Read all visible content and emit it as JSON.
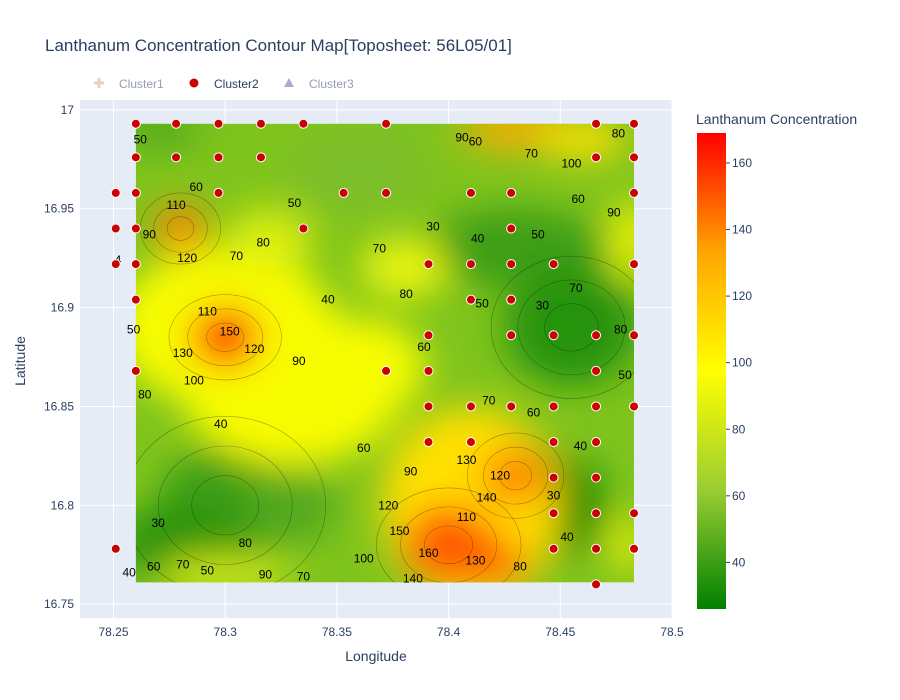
{
  "chart_data": {
    "type": "contour",
    "title": "Lanthanum Concentration Contour Map[Toposheet: 56L05/01]",
    "xlabel": "Longitude",
    "ylabel": "Latitude",
    "xlim": [
      78.235,
      78.5
    ],
    "ylim": [
      16.743,
      17.005
    ],
    "xticks": [
      78.25,
      78.3,
      78.35,
      78.4,
      78.45,
      78.5
    ],
    "xtick_labels": [
      "78.25",
      "78.3",
      "78.35",
      "78.4",
      "78.45",
      "78.5"
    ],
    "yticks": [
      16.75,
      16.8,
      16.85,
      16.9,
      16.95,
      17.0
    ],
    "ytick_labels": [
      "16.75",
      "16.8",
      "16.85",
      "16.9",
      "16.95",
      "17"
    ],
    "grid": true,
    "contour_region": {
      "x": [
        78.26,
        78.483
      ],
      "y": [
        16.761,
        16.993
      ]
    },
    "colorbar": {
      "title": "Lanthanum Concentration",
      "range": [
        26,
        169
      ],
      "ticks": [
        40,
        60,
        80,
        100,
        120,
        140,
        160
      ],
      "colors": [
        "#008000",
        "#9acd32",
        "#ffff00",
        "#ffa500",
        "#ff0000"
      ]
    },
    "legend": {
      "position": "top",
      "items": [
        {
          "name": "Cluster1",
          "symbol": "cross",
          "color": "#d2a679",
          "visible": false
        },
        {
          "name": "Cluster2",
          "symbol": "circle",
          "color": "#cc0000",
          "visible": true
        },
        {
          "name": "Cluster3",
          "symbol": "triangle",
          "color": "#5a5aa0",
          "visible": false
        }
      ]
    },
    "contour_labels": [
      {
        "text": "50",
        "x": 78.262,
        "y": 16.985
      },
      {
        "text": "60",
        "x": 78.287,
        "y": 16.961
      },
      {
        "text": "110",
        "x": 78.278,
        "y": 16.952
      },
      {
        "text": "90",
        "x": 78.266,
        "y": 16.937
      },
      {
        "text": "120",
        "x": 78.283,
        "y": 16.925
      },
      {
        "text": "70",
        "x": 78.305,
        "y": 16.926
      },
      {
        "text": "80",
        "x": 78.317,
        "y": 16.933
      },
      {
        "text": "50",
        "x": 78.331,
        "y": 16.953
      },
      {
        "text": "4",
        "x": 78.252,
        "y": 16.924
      },
      {
        "text": "50",
        "x": 78.259,
        "y": 16.889
      },
      {
        "text": "110",
        "x": 78.292,
        "y": 16.898
      },
      {
        "text": "150",
        "x": 78.302,
        "y": 16.888
      },
      {
        "text": "130",
        "x": 78.281,
        "y": 16.877
      },
      {
        "text": "120",
        "x": 78.313,
        "y": 16.879
      },
      {
        "text": "100",
        "x": 78.286,
        "y": 16.863
      },
      {
        "text": "80",
        "x": 78.264,
        "y": 16.856
      },
      {
        "text": "40",
        "x": 78.298,
        "y": 16.841
      },
      {
        "text": "90",
        "x": 78.333,
        "y": 16.873
      },
      {
        "text": "40",
        "x": 78.346,
        "y": 16.904
      },
      {
        "text": "70",
        "x": 78.369,
        "y": 16.93
      },
      {
        "text": "80",
        "x": 78.381,
        "y": 16.907
      },
      {
        "text": "30",
        "x": 78.393,
        "y": 16.941
      },
      {
        "text": "40",
        "x": 78.413,
        "y": 16.935
      },
      {
        "text": "50",
        "x": 78.415,
        "y": 16.902
      },
      {
        "text": "60",
        "x": 78.389,
        "y": 16.88
      },
      {
        "text": "60",
        "x": 78.362,
        "y": 16.829
      },
      {
        "text": "90",
        "x": 78.406,
        "y": 16.986
      },
      {
        "text": "60",
        "x": 78.412,
        "y": 16.984
      },
      {
        "text": "70",
        "x": 78.437,
        "y": 16.978
      },
      {
        "text": "100",
        "x": 78.455,
        "y": 16.973
      },
      {
        "text": "80",
        "x": 78.476,
        "y": 16.988
      },
      {
        "text": "60",
        "x": 78.458,
        "y": 16.955
      },
      {
        "text": "50",
        "x": 78.44,
        "y": 16.937
      },
      {
        "text": "90",
        "x": 78.474,
        "y": 16.948
      },
      {
        "text": "70",
        "x": 78.457,
        "y": 16.91
      },
      {
        "text": "30",
        "x": 78.442,
        "y": 16.901
      },
      {
        "text": "80",
        "x": 78.477,
        "y": 16.889
      },
      {
        "text": "50",
        "x": 78.479,
        "y": 16.866
      },
      {
        "text": "60",
        "x": 78.438,
        "y": 16.847
      },
      {
        "text": "70",
        "x": 78.418,
        "y": 16.853
      },
      {
        "text": "40",
        "x": 78.459,
        "y": 16.83
      },
      {
        "text": "130",
        "x": 78.408,
        "y": 16.823
      },
      {
        "text": "120",
        "x": 78.423,
        "y": 16.815
      },
      {
        "text": "90",
        "x": 78.383,
        "y": 16.817
      },
      {
        "text": "140",
        "x": 78.417,
        "y": 16.804
      },
      {
        "text": "120",
        "x": 78.373,
        "y": 16.8
      },
      {
        "text": "110",
        "x": 78.408,
        "y": 16.794
      },
      {
        "text": "150",
        "x": 78.378,
        "y": 16.787
      },
      {
        "text": "160",
        "x": 78.391,
        "y": 16.776
      },
      {
        "text": "130",
        "x": 78.412,
        "y": 16.772
      },
      {
        "text": "100",
        "x": 78.362,
        "y": 16.773
      },
      {
        "text": "140",
        "x": 78.384,
        "y": 16.763
      },
      {
        "text": "80",
        "x": 78.432,
        "y": 16.769
      },
      {
        "text": "30",
        "x": 78.447,
        "y": 16.805
      },
      {
        "text": "40",
        "x": 78.453,
        "y": 16.784
      },
      {
        "text": "30",
        "x": 78.27,
        "y": 16.791
      },
      {
        "text": "60",
        "x": 78.268,
        "y": 16.769
      },
      {
        "text": "70",
        "x": 78.281,
        "y": 16.77
      },
      {
        "text": "50",
        "x": 78.292,
        "y": 16.767
      },
      {
        "text": "80",
        "x": 78.309,
        "y": 16.781
      },
      {
        "text": "90",
        "x": 78.318,
        "y": 16.765
      },
      {
        "text": "70",
        "x": 78.335,
        "y": 16.764
      },
      {
        "text": "40",
        "x": 78.257,
        "y": 16.766
      }
    ],
    "series": [
      {
        "name": "Cluster2",
        "points": [
          [
            78.26,
            16.993
          ],
          [
            78.278,
            16.993
          ],
          [
            78.297,
            16.993
          ],
          [
            78.316,
            16.993
          ],
          [
            78.335,
            16.993
          ],
          [
            78.372,
            16.993
          ],
          [
            78.466,
            16.993
          ],
          [
            78.483,
            16.993
          ],
          [
            78.26,
            16.976
          ],
          [
            78.278,
            16.976
          ],
          [
            78.297,
            16.976
          ],
          [
            78.316,
            16.976
          ],
          [
            78.466,
            16.976
          ],
          [
            78.483,
            16.976
          ],
          [
            78.251,
            16.958
          ],
          [
            78.26,
            16.958
          ],
          [
            78.297,
            16.958
          ],
          [
            78.353,
            16.958
          ],
          [
            78.372,
            16.958
          ],
          [
            78.41,
            16.958
          ],
          [
            78.428,
            16.958
          ],
          [
            78.483,
            16.958
          ],
          [
            78.251,
            16.94
          ],
          [
            78.26,
            16.94
          ],
          [
            78.335,
            16.94
          ],
          [
            78.428,
            16.94
          ],
          [
            78.251,
            16.922
          ],
          [
            78.26,
            16.922
          ],
          [
            78.391,
            16.922
          ],
          [
            78.41,
            16.922
          ],
          [
            78.428,
            16.922
          ],
          [
            78.447,
            16.922
          ],
          [
            78.483,
            16.922
          ],
          [
            78.26,
            16.904
          ],
          [
            78.41,
            16.904
          ],
          [
            78.428,
            16.904
          ],
          [
            78.391,
            16.886
          ],
          [
            78.428,
            16.886
          ],
          [
            78.447,
            16.886
          ],
          [
            78.466,
            16.886
          ],
          [
            78.483,
            16.886
          ],
          [
            78.26,
            16.868
          ],
          [
            78.372,
            16.868
          ],
          [
            78.391,
            16.868
          ],
          [
            78.466,
            16.868
          ],
          [
            78.391,
            16.85
          ],
          [
            78.41,
            16.85
          ],
          [
            78.428,
            16.85
          ],
          [
            78.447,
            16.85
          ],
          [
            78.466,
            16.85
          ],
          [
            78.483,
            16.85
          ],
          [
            78.391,
            16.832
          ],
          [
            78.41,
            16.832
          ],
          [
            78.447,
            16.832
          ],
          [
            78.466,
            16.832
          ],
          [
            78.447,
            16.814
          ],
          [
            78.466,
            16.814
          ],
          [
            78.447,
            16.796
          ],
          [
            78.466,
            16.796
          ],
          [
            78.483,
            16.796
          ],
          [
            78.251,
            16.778
          ],
          [
            78.447,
            16.778
          ],
          [
            78.466,
            16.778
          ],
          [
            78.483,
            16.778
          ],
          [
            78.466,
            16.76
          ]
        ]
      }
    ]
  }
}
